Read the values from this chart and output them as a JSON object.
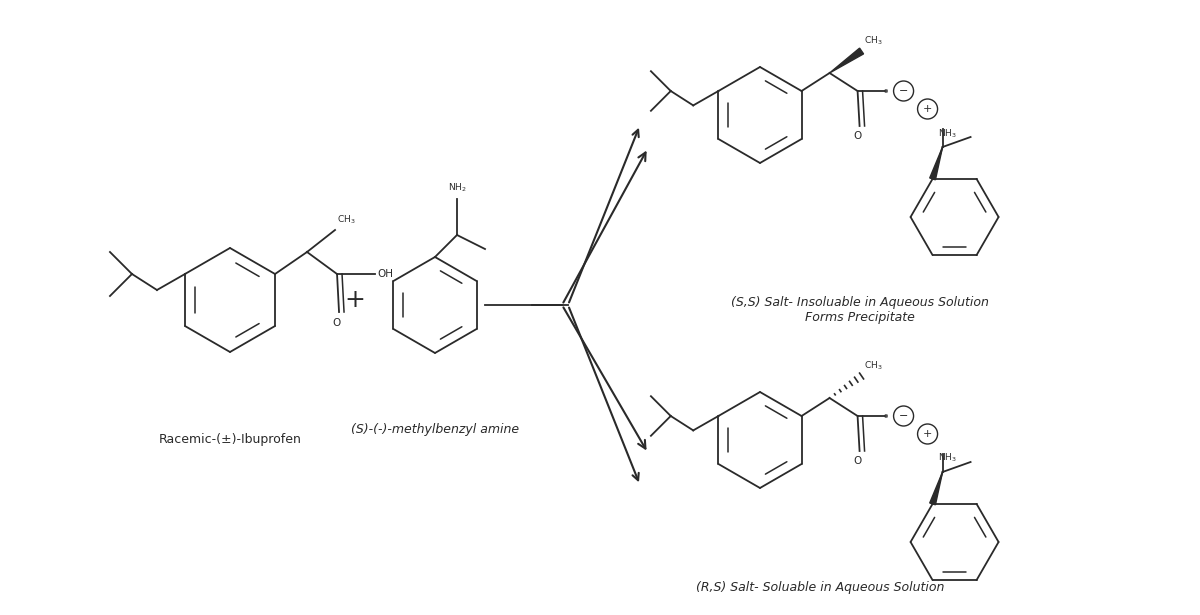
{
  "background_color": "#ffffff",
  "figsize": [
    12.0,
    6.15
  ],
  "dpi": 100,
  "label_ibuprofen": "Racemic-(±)-Ibuprofen",
  "label_amine": "(S)-(-)-methylbenzyl amine",
  "label_ss_salt": "(S,S) Salt- Insoluable in Aqueous Solution\nForms Precipitate",
  "label_rs_salt": "(R,S) Salt- Soluable in Aqueous Solution",
  "font_size_label": 9,
  "arrow_color": "#2a2a2a",
  "line_color": "#2a2a2a",
  "text_color": "#2a2a2a"
}
